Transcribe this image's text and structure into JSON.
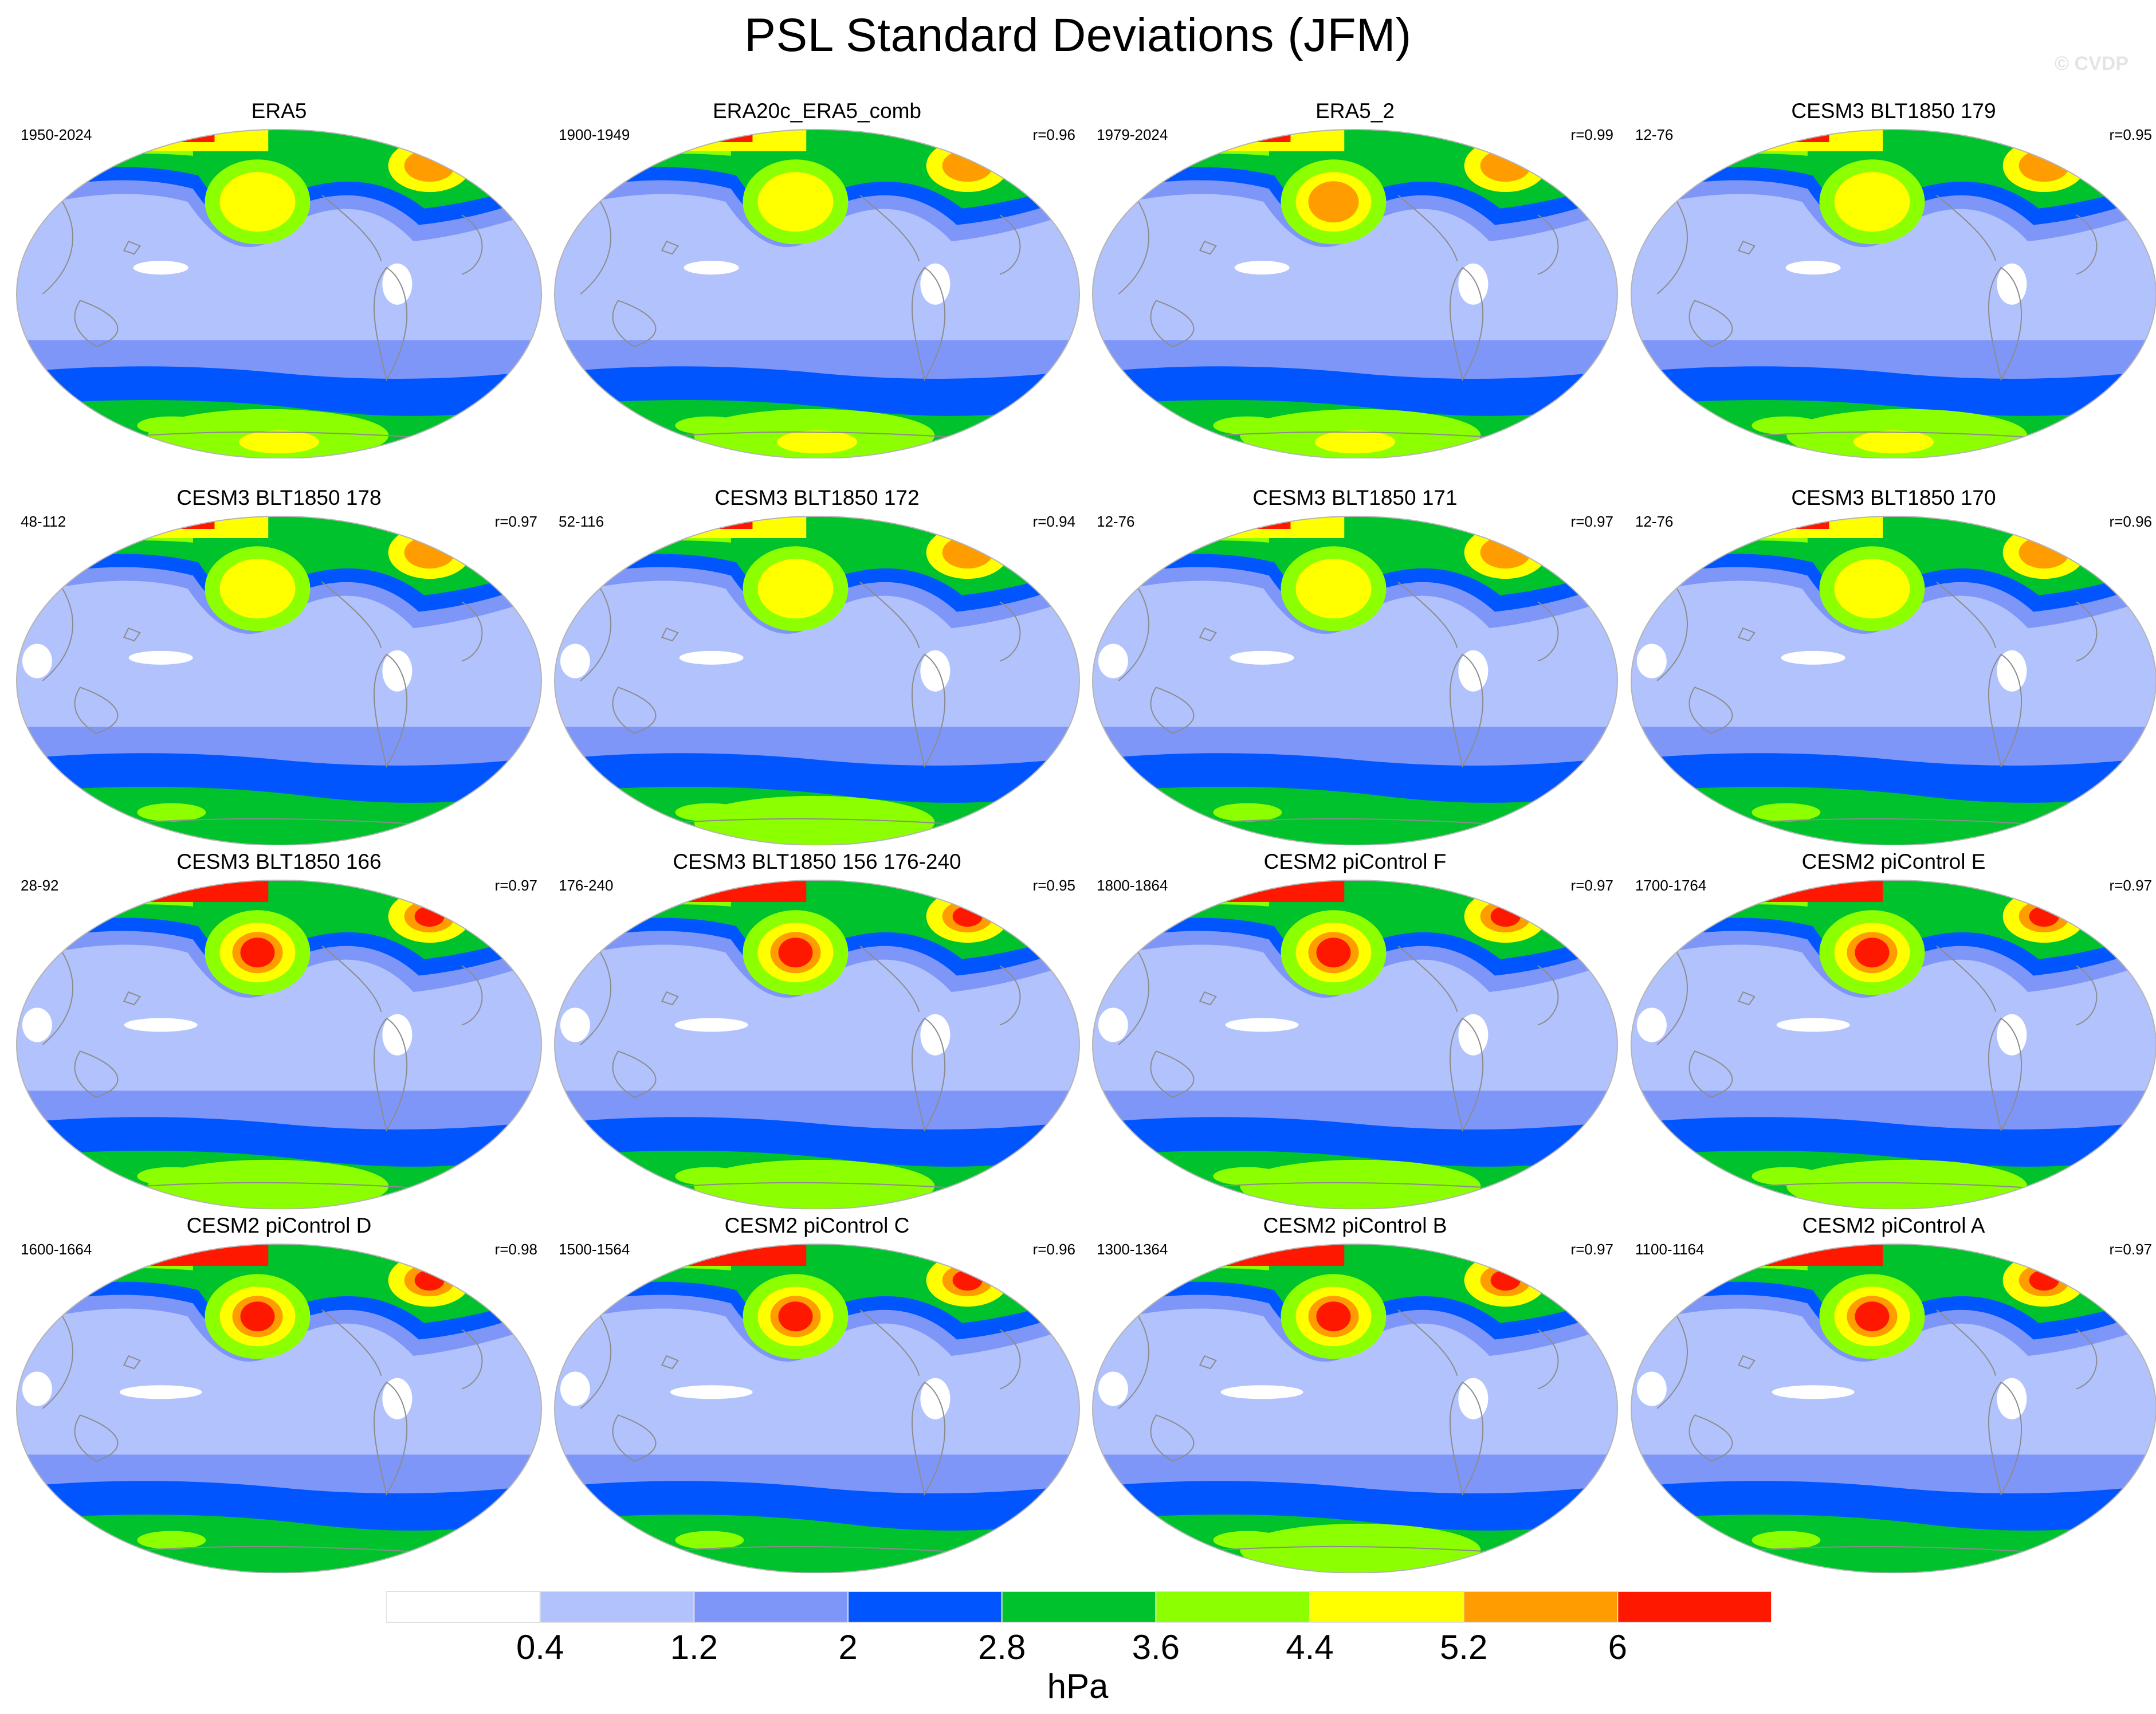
{
  "title": "PSL Standard Deviations (JFM)",
  "watermark": "© CVDP",
  "units": "hPa",
  "colorbar": {
    "levels": [
      "0.4",
      "1.2",
      "2",
      "2.8",
      "3.6",
      "4.4",
      "5.2",
      "6"
    ],
    "colors": [
      "#ffffff",
      "#b2c2fc",
      "#7f96f9",
      "#0055ff",
      "#00c22c",
      "#8cff00",
      "#ffff00",
      "#ff9c00",
      "#ff1800"
    ]
  },
  "colors": {
    "land_outline": "#8c8c8c",
    "globe_outline": "#b4b4b4"
  },
  "panels": [
    {
      "title": "ERA5",
      "range": "1950-2024",
      "r": ""
    },
    {
      "title": "ERA20c_ERA5_comb",
      "range": "1900-1949",
      "r": "r=0.96"
    },
    {
      "title": "ERA5_2",
      "range": "1979-2024",
      "r": "r=0.99"
    },
    {
      "title": "CESM3 BLT1850 179",
      "range": "12-76",
      "r": "r=0.95"
    },
    {
      "title": "CESM3 BLT1850 178",
      "range": "48-112",
      "r": "r=0.97"
    },
    {
      "title": "CESM3 BLT1850 172",
      "range": "52-116",
      "r": "r=0.94"
    },
    {
      "title": "CESM3 BLT1850 171",
      "range": "12-76",
      "r": "r=0.97"
    },
    {
      "title": "CESM3 BLT1850 170",
      "range": "12-76",
      "r": "r=0.96"
    },
    {
      "title": "CESM3 BLT1850 166",
      "range": "28-92",
      "r": "r=0.97"
    },
    {
      "title": "CESM3 BLT1850 156 176-240",
      "range": "176-240",
      "r": "r=0.95"
    },
    {
      "title": "CESM2 piControl F",
      "range": "1800-1864",
      "r": "r=0.97"
    },
    {
      "title": "CESM2 piControl E",
      "range": "1700-1764",
      "r": "r=0.97"
    },
    {
      "title": "CESM2 piControl D",
      "range": "1600-1664",
      "r": "r=0.98"
    },
    {
      "title": "CESM2 piControl C",
      "range": "1500-1564",
      "r": "r=0.96"
    },
    {
      "title": "CESM2 piControl B",
      "range": "1300-1364",
      "r": "r=0.97"
    },
    {
      "title": "CESM2 piControl A",
      "range": "1100-1164",
      "r": "r=0.97"
    }
  ]
}
